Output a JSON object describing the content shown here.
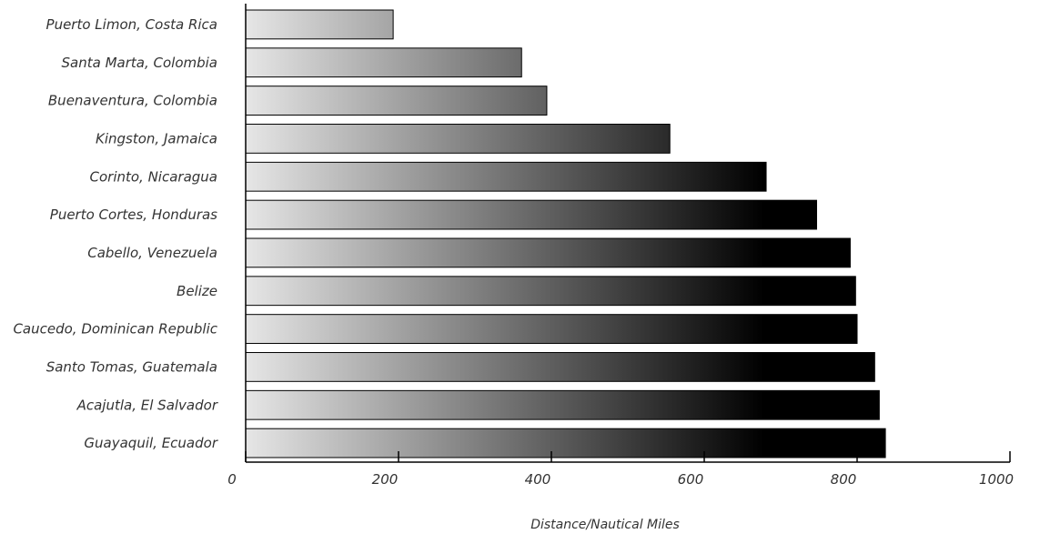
{
  "chart_data": {
    "type": "bar",
    "orientation": "horizontal",
    "categories": [
      "Puerto Limon, Costa Rica",
      "Santa Marta, Colombia",
      "Buenaventura, Colombia",
      "Kingston, Jamaica",
      "Corinto, Nicaragua",
      "Puerto Cortes, Honduras",
      "Cabello, Venezuela",
      "Belize",
      "Caucedo, Dominican Republic",
      "Santo Tomas, Guatemala",
      "Acajutla, El Salvador",
      "Guayaquil, Ecuador"
    ],
    "values": [
      193,
      361,
      394,
      555,
      681,
      747,
      791,
      798,
      800,
      823,
      829,
      837
    ],
    "xlabel": "Distance/Nautical Miles",
    "ylabel": "",
    "xlim": [
      0,
      1000
    ],
    "xticks": [
      "0",
      "200",
      "400",
      "600",
      "800",
      "1000"
    ],
    "grid": false,
    "bar_gradient": [
      "#e6e6e6",
      "#000000"
    ]
  }
}
